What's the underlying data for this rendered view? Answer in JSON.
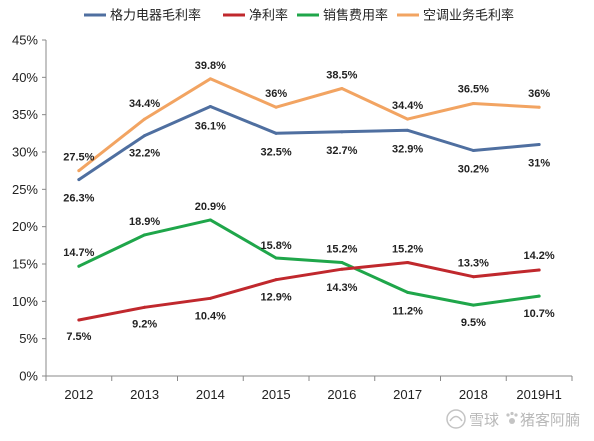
{
  "chart_data": {
    "type": "line",
    "categories": [
      "2012",
      "2013",
      "2014",
      "2015",
      "2016",
      "2017",
      "2018",
      "2019H1"
    ],
    "ylim": [
      0,
      45
    ],
    "yticks": [
      "0%",
      "5%",
      "10%",
      "15%",
      "20%",
      "25%",
      "30%",
      "35%",
      "40%",
      "45%"
    ],
    "grid": false,
    "legend_position": "top",
    "series": [
      {
        "name": "格力电器毛利率",
        "color": "#4F6FA0",
        "values": [
          26.3,
          32.2,
          36.1,
          32.5,
          32.7,
          32.9,
          30.2,
          31
        ],
        "labels": [
          "26.3%",
          "32.2%",
          "36.1%",
          "32.5%",
          "32.7%",
          "32.9%",
          "30.2%",
          "31%"
        ]
      },
      {
        "name": "净利率",
        "color": "#C0282D",
        "values": [
          7.5,
          9.2,
          10.4,
          12.9,
          14.3,
          15.2,
          13.3,
          14.2
        ],
        "labels": [
          "7.5%",
          "9.2%",
          "10.4%",
          "12.9%",
          "14.3%",
          "15.2%",
          "13.3%",
          "14.2%"
        ]
      },
      {
        "name": "销售费用率",
        "color": "#1FA64A",
        "values": [
          14.7,
          18.9,
          20.9,
          15.8,
          15.2,
          11.2,
          9.5,
          10.7
        ],
        "labels": [
          "14.7%",
          "18.9%",
          "20.9%",
          "15.8%",
          "15.2%",
          "11.2%",
          "9.5%",
          "10.7%"
        ]
      },
      {
        "name": "空调业务毛利率",
        "color": "#F2A462",
        "values": [
          27.5,
          34.4,
          39.8,
          36,
          38.5,
          34.4,
          36.5,
          36
        ],
        "labels": [
          "27.5%",
          "34.4%",
          "39.8%",
          "36%",
          "38.5%",
          "34.4%",
          "36.5%",
          "36%"
        ]
      }
    ]
  },
  "watermark": {
    "left": "雪球",
    "right": "猪客阿腩"
  }
}
